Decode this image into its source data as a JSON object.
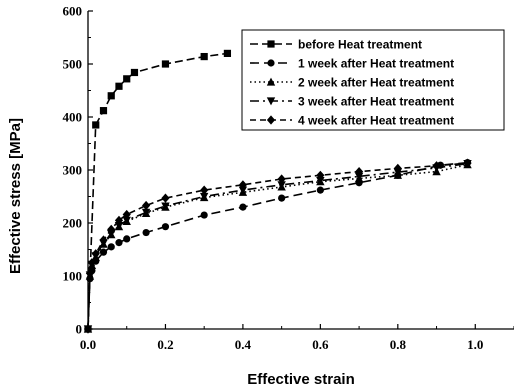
{
  "chart_data": {
    "type": "line",
    "title": "",
    "xlabel": "Effective strain",
    "ylabel": "Effective stress  [MPa]",
    "xlim": [
      0,
      1.1
    ],
    "ylim": [
      0,
      600
    ],
    "x_ticks": [
      "0.0",
      "0.2",
      "0.4",
      "0.6",
      "0.8",
      "1.0"
    ],
    "y_ticks": [
      "0",
      "100",
      "200",
      "300",
      "400",
      "500",
      "600"
    ],
    "grid": false,
    "legend_position": "top-right",
    "series": [
      {
        "name": "before Heat treatment",
        "marker": "square",
        "dash": "8,4",
        "points": [
          [
            0.0,
            0
          ],
          [
            0.02,
            385
          ],
          [
            0.04,
            412
          ],
          [
            0.06,
            440
          ],
          [
            0.08,
            458
          ],
          [
            0.1,
            472
          ],
          [
            0.12,
            484
          ],
          [
            0.2,
            500
          ],
          [
            0.3,
            514
          ],
          [
            0.36,
            520
          ]
        ]
      },
      {
        "name": "1 week after Heat treatment",
        "marker": "circle",
        "dash": "9,5",
        "points": [
          [
            0.0,
            0
          ],
          [
            0.005,
            95
          ],
          [
            0.01,
            110
          ],
          [
            0.02,
            128
          ],
          [
            0.04,
            145
          ],
          [
            0.06,
            155
          ],
          [
            0.08,
            163
          ],
          [
            0.1,
            170
          ],
          [
            0.15,
            182
          ],
          [
            0.2,
            193
          ],
          [
            0.3,
            215
          ],
          [
            0.4,
            230
          ],
          [
            0.5,
            247
          ],
          [
            0.6,
            262
          ],
          [
            0.7,
            276
          ],
          [
            0.8,
            290
          ],
          [
            0.91,
            309
          ],
          [
            0.98,
            314
          ]
        ]
      },
      {
        "name": "2 week after Heat treatment",
        "marker": "triangle-up",
        "dash": "1.5,3",
        "points": [
          [
            0.0,
            0
          ],
          [
            0.005,
            100
          ],
          [
            0.01,
            120
          ],
          [
            0.02,
            135
          ],
          [
            0.04,
            160
          ],
          [
            0.06,
            178
          ],
          [
            0.08,
            193
          ],
          [
            0.1,
            203
          ],
          [
            0.15,
            218
          ],
          [
            0.2,
            230
          ],
          [
            0.3,
            248
          ],
          [
            0.4,
            258
          ],
          [
            0.5,
            268
          ],
          [
            0.6,
            278
          ],
          [
            0.7,
            284
          ],
          [
            0.8,
            290
          ],
          [
            0.9,
            297
          ],
          [
            0.98,
            310
          ]
        ]
      },
      {
        "name": "3 week after Heat treatment",
        "marker": "triangle-down",
        "dash": "9,4,2,4",
        "points": [
          [
            0.0,
            0
          ],
          [
            0.005,
            102
          ],
          [
            0.01,
            122
          ],
          [
            0.02,
            138
          ],
          [
            0.04,
            162
          ],
          [
            0.06,
            180
          ],
          [
            0.08,
            195
          ],
          [
            0.1,
            205
          ],
          [
            0.15,
            220
          ],
          [
            0.2,
            232
          ],
          [
            0.3,
            250
          ],
          [
            0.4,
            262
          ],
          [
            0.5,
            272
          ],
          [
            0.6,
            280
          ],
          [
            0.7,
            288
          ],
          [
            0.8,
            296
          ],
          [
            0.9,
            304
          ],
          [
            0.98,
            312
          ]
        ]
      },
      {
        "name": "4 week after Heat treatment",
        "marker": "diamond",
        "dash": "6,4",
        "points": [
          [
            0.0,
            0
          ],
          [
            0.005,
            105
          ],
          [
            0.01,
            125
          ],
          [
            0.02,
            142
          ],
          [
            0.04,
            168
          ],
          [
            0.06,
            188
          ],
          [
            0.08,
            205
          ],
          [
            0.1,
            216
          ],
          [
            0.15,
            233
          ],
          [
            0.2,
            247
          ],
          [
            0.3,
            262
          ],
          [
            0.4,
            272
          ],
          [
            0.5,
            283
          ],
          [
            0.6,
            290
          ],
          [
            0.7,
            297
          ],
          [
            0.8,
            303
          ],
          [
            0.9,
            308
          ],
          [
            0.98,
            313
          ]
        ]
      }
    ]
  }
}
